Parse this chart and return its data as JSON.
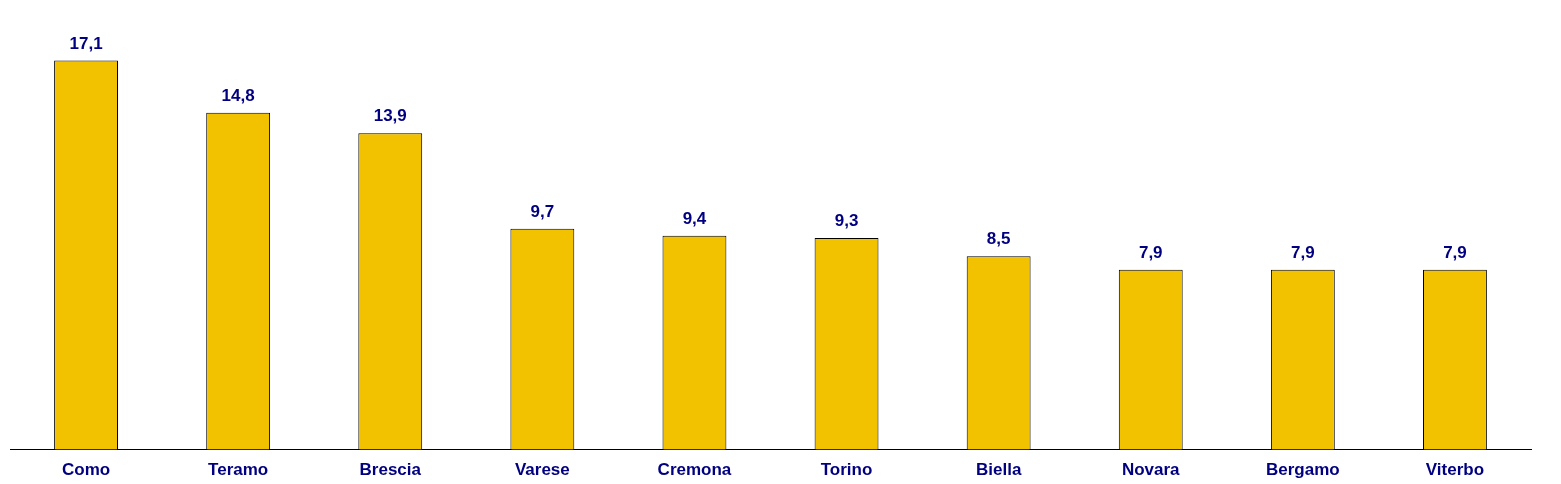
{
  "chart_data": {
    "type": "bar",
    "categories": [
      "Como",
      "Teramo",
      "Brescia",
      "Varese",
      "Cremona",
      "Torino",
      "Biella",
      "Novara",
      "Bergamo",
      "Viterbo"
    ],
    "values": [
      17.1,
      14.8,
      13.9,
      9.7,
      9.4,
      9.3,
      8.5,
      7.9,
      7.9,
      7.9
    ],
    "value_labels": [
      "17,1",
      "14,8",
      "13,9",
      "9,7",
      "9,4",
      "9,3",
      "8,5",
      "7,9",
      "7,9",
      "7,9"
    ],
    "color": "#f2c200",
    "grid": false,
    "legend": false
  }
}
